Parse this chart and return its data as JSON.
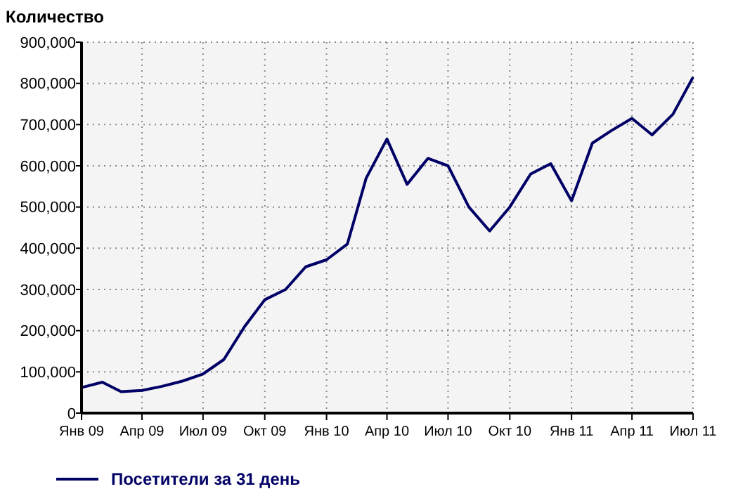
{
  "chart_data": {
    "type": "line",
    "ylabel": "Количество",
    "x": [
      "2009-01",
      "2009-02",
      "2009-03",
      "2009-04",
      "2009-05",
      "2009-06",
      "2009-07",
      "2009-08",
      "2009-09",
      "2009-10",
      "2009-11",
      "2009-12",
      "2010-01",
      "2010-02",
      "2010-03",
      "2010-04",
      "2010-05",
      "2010-06",
      "2010-07",
      "2010-08",
      "2010-09",
      "2010-10",
      "2010-11",
      "2010-12",
      "2011-01",
      "2011-02",
      "2011-03",
      "2011-04",
      "2011-05",
      "2011-06",
      "2011-07"
    ],
    "series": [
      {
        "name": "Посетители за 31 день",
        "color": "#000066",
        "values": [
          62000,
          75000,
          52000,
          55000,
          65000,
          78000,
          95000,
          130000,
          210000,
          275000,
          300000,
          355000,
          372000,
          410000,
          570000,
          665000,
          555000,
          618000,
          600000,
          500000,
          442000,
          500000,
          580000,
          605000,
          515000,
          655000,
          685000,
          715000,
          675000,
          725000,
          815000
        ]
      }
    ],
    "xlim": [
      "2009-01",
      "2011-07"
    ],
    "xticks": [
      {
        "value": "2009-01",
        "label": "Янв 09"
      },
      {
        "value": "2009-04",
        "label": "Апр 09"
      },
      {
        "value": "2009-07",
        "label": "Июл 09"
      },
      {
        "value": "2009-10",
        "label": "Окт 09"
      },
      {
        "value": "2010-01",
        "label": "Янв 10"
      },
      {
        "value": "2010-04",
        "label": "Апр 10"
      },
      {
        "value": "2010-07",
        "label": "Июл 10"
      },
      {
        "value": "2010-10",
        "label": "Окт 10"
      },
      {
        "value": "2011-01",
        "label": "Янв 11"
      },
      {
        "value": "2011-04",
        "label": "Апр 11"
      },
      {
        "value": "2011-07",
        "label": "Июл 11"
      }
    ],
    "ylim": [
      0,
      900000
    ],
    "yticks": [
      {
        "value": 0,
        "label": "0"
      },
      {
        "value": 100000,
        "label": "100,000"
      },
      {
        "value": 200000,
        "label": "200,000"
      },
      {
        "value": 300000,
        "label": "300,000"
      },
      {
        "value": 400000,
        "label": "400,000"
      },
      {
        "value": 500000,
        "label": "500,000"
      },
      {
        "value": 600000,
        "label": "600,000"
      },
      {
        "value": 700000,
        "label": "700,000"
      },
      {
        "value": 800000,
        "label": "800,000"
      },
      {
        "value": 900000,
        "label": "900,000"
      }
    ],
    "grid": true,
    "legend": "bottom",
    "line_style": "solid",
    "marker": "none"
  }
}
